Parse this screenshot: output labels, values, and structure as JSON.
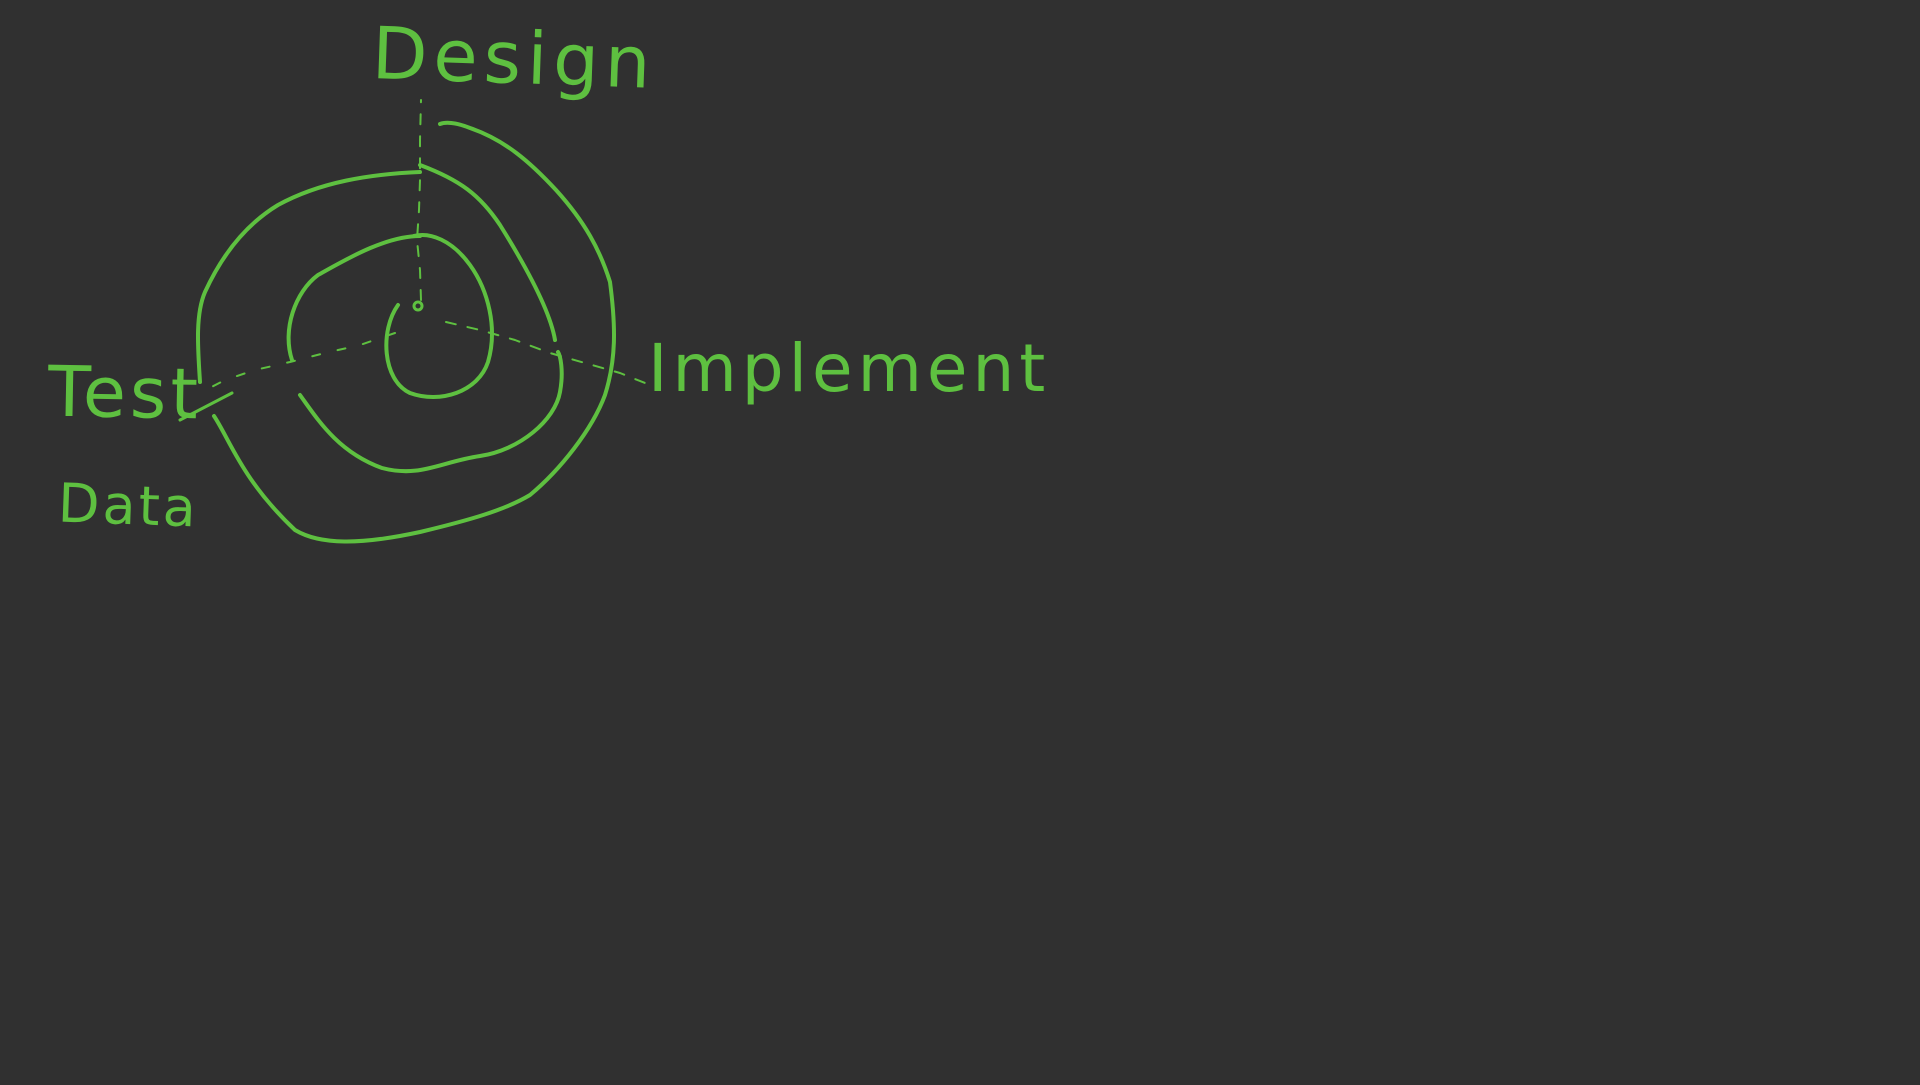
{
  "canvas": {
    "background_color": "#303030",
    "ink_color": "#5ec040"
  },
  "labels": {
    "design": "Design",
    "implement": "Implement",
    "test": "Test",
    "data": "Data"
  }
}
